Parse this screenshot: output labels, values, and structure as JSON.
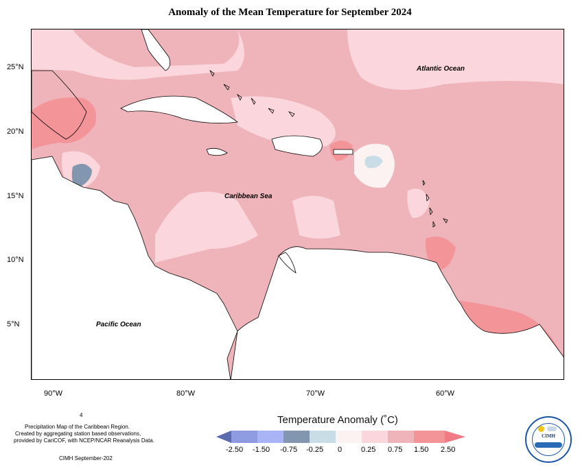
{
  "title": "Anomaly of the Mean Temperature for September 2024",
  "axes": {
    "y_labels": [
      "25°N",
      "20°N",
      "15°N",
      "10°N",
      "5°N"
    ],
    "x_labels": [
      "90°W",
      "80°W",
      "70°W",
      "60°W"
    ]
  },
  "map_labels": {
    "atlantic": "Atlantic Ocean",
    "caribbean": "Caribbean Sea",
    "pacific": "Pacific Ocean"
  },
  "footnotes": {
    "page_num": "4",
    "line1": "Precipitation Map of the Caribbean Region.",
    "line2": "Created by aggregating station based observations,",
    "line3": "provided by CariCOF, with NCEP/NCAR Reanalysis Data.",
    "credit": "CIMH September-202"
  },
  "legend": {
    "title": "Temperature Anomaly (˚C)",
    "ticks": [
      "-2.50",
      "-1.50",
      "-0.75",
      "-0.25",
      "0",
      "0.25",
      "0.75",
      "1.50",
      "2.50"
    ],
    "colors": [
      "#5b6cae",
      "#8e9be0",
      "#a9b4f6",
      "#8296b0",
      "#c8dde6",
      "#fdf2f2",
      "#fbd6dd",
      "#eeb4ba",
      "#f39499",
      "#f07b84"
    ]
  },
  "logo": {
    "text": "CIMH"
  }
}
